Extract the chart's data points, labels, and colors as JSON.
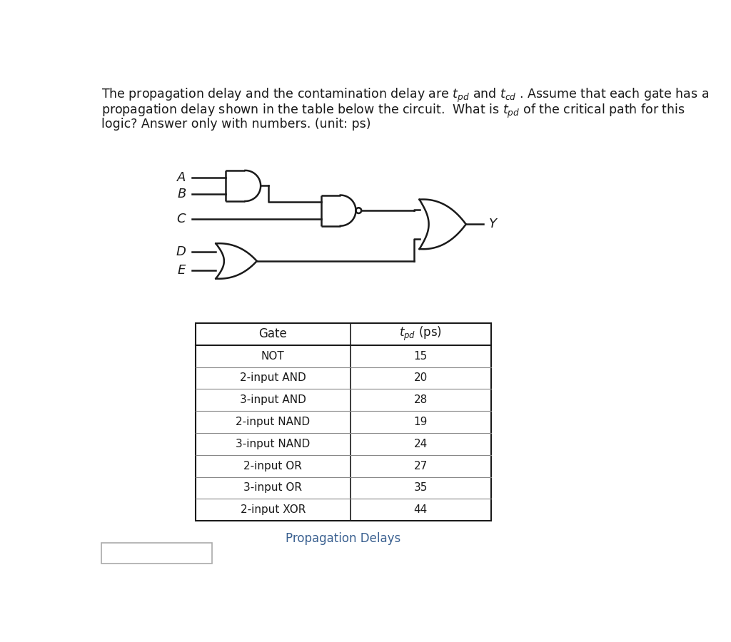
{
  "bg_color": "#ffffff",
  "text_color": "#1a1a1a",
  "table_gates": [
    "NOT",
    "2-input AND",
    "3-input AND",
    "2-input NAND",
    "3-input NAND",
    "2-input OR",
    "3-input OR",
    "2-input XOR"
  ],
  "table_values": [
    "15",
    "20",
    "28",
    "19",
    "24",
    "27",
    "35",
    "44"
  ],
  "table_caption": "Propagation Delays",
  "table_header_gate": "Gate",
  "answer_box_color": "#aaaaaa",
  "caption_color": "#3a6090"
}
